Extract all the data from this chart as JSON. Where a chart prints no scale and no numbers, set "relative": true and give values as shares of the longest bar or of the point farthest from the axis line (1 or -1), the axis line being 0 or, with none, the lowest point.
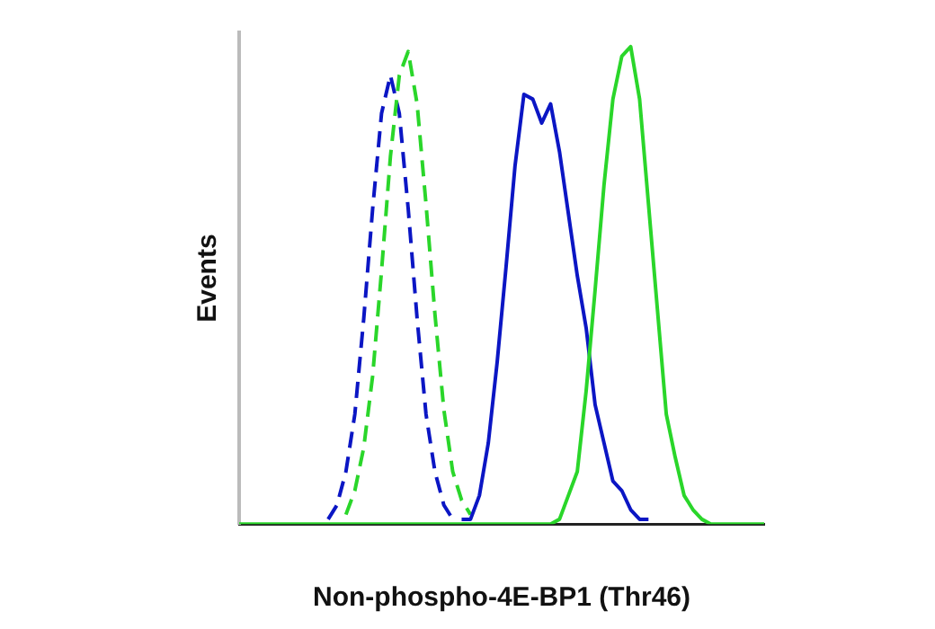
{
  "chart_data": {
    "type": "line",
    "relative": true,
    "xlabel": "Non-phospho-4E-BP1 (Thr46)",
    "ylabel": "Events",
    "grid": false,
    "legend": false,
    "marker": "none",
    "categories": [
      null,
      null,
      null,
      null,
      null,
      null,
      null,
      null,
      null,
      null,
      null,
      null,
      null,
      null,
      null,
      null,
      null,
      null,
      null,
      null,
      null,
      null,
      null,
      null,
      null,
      null,
      null,
      null,
      null,
      null,
      null,
      null,
      null,
      null,
      null,
      null,
      null,
      null,
      null,
      null,
      null,
      null,
      null,
      null,
      null,
      null,
      null,
      null,
      null,
      null,
      null,
      null,
      null,
      null,
      null,
      null,
      null,
      null,
      null,
      null
    ],
    "series": [
      {
        "color": "#0b16c4",
        "line_style": "dashed",
        "values": [
          null,
          null,
          null,
          null,
          null,
          null,
          null,
          null,
          null,
          null,
          0.01,
          0.04,
          0.11,
          0.23,
          0.43,
          0.66,
          0.86,
          0.94,
          0.86,
          0.66,
          0.43,
          0.23,
          0.11,
          0.04,
          0.01,
          null,
          null,
          null,
          null,
          null,
          null,
          null,
          null,
          null,
          null,
          null,
          null,
          null,
          null,
          null,
          null,
          null,
          null,
          null,
          null,
          null,
          null,
          null,
          null,
          null,
          null,
          null,
          null,
          null,
          null,
          null,
          null,
          null,
          null,
          null
        ]
      },
      {
        "color": "#2ad62a",
        "line_style": "dashed",
        "values": [
          null,
          null,
          null,
          null,
          null,
          null,
          null,
          null,
          null,
          null,
          null,
          null,
          0.02,
          0.07,
          0.16,
          0.31,
          0.53,
          0.77,
          0.94,
          0.99,
          0.88,
          0.67,
          0.44,
          0.24,
          0.11,
          0.05,
          0.02,
          null,
          null,
          null,
          null,
          null,
          null,
          null,
          null,
          null,
          null,
          null,
          null,
          null,
          null,
          null,
          null,
          null,
          null,
          null,
          null,
          null,
          null,
          null,
          null,
          null,
          null,
          null,
          null,
          null,
          null,
          null,
          null,
          null
        ]
      },
      {
        "color": "#0b16c4",
        "line_style": "solid",
        "values": [
          null,
          null,
          null,
          null,
          null,
          null,
          null,
          null,
          null,
          null,
          null,
          null,
          null,
          null,
          null,
          null,
          null,
          null,
          null,
          null,
          null,
          null,
          null,
          null,
          null,
          0.01,
          0.01,
          0.06,
          0.17,
          0.34,
          0.54,
          0.75,
          0.9,
          0.89,
          0.84,
          0.88,
          0.78,
          0.65,
          0.52,
          0.41,
          0.25,
          0.17,
          0.09,
          0.07,
          0.03,
          0.01,
          0.01,
          null,
          null,
          null,
          null,
          null,
          null,
          null,
          null,
          null,
          null,
          null,
          null,
          null
        ]
      },
      {
        "color": "#2ad62a",
        "line_style": "solid",
        "values": [
          0,
          0,
          0,
          0,
          0,
          0,
          0,
          0,
          0,
          0,
          0,
          0,
          0,
          0,
          0,
          0,
          0,
          0,
          0,
          0,
          0,
          0,
          0,
          0,
          0,
          0,
          0,
          0,
          0,
          0,
          0,
          0,
          0,
          0,
          0,
          0,
          0.01,
          0.06,
          0.11,
          0.28,
          0.49,
          0.71,
          0.89,
          0.98,
          1,
          0.89,
          0.67,
          0.45,
          0.23,
          0.14,
          0.06,
          0.03,
          0.01,
          0,
          0,
          0,
          0,
          0,
          0,
          0
        ]
      }
    ]
  }
}
